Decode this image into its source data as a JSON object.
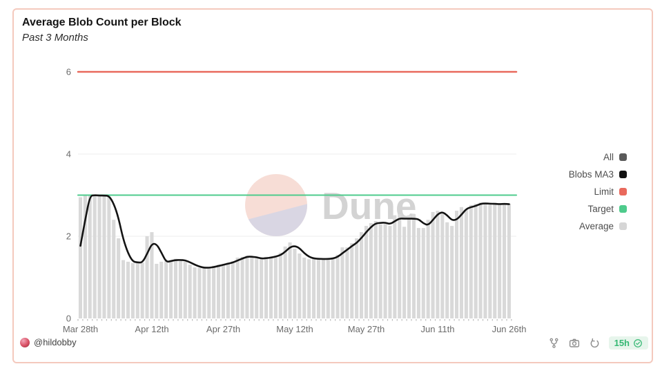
{
  "header": {
    "title": "Average Blob Count per Block",
    "subtitle": "Past 3 Months"
  },
  "watermark": {
    "text": "Dune"
  },
  "legend": [
    {
      "label": "All",
      "color": "#5a5a5a"
    },
    {
      "label": "Blobs MA3",
      "color": "#111111"
    },
    {
      "label": "Limit",
      "color": "#e9695c"
    },
    {
      "label": "Target",
      "color": "#4ecb8c"
    },
    {
      "label": "Average",
      "color": "#d6d6d6"
    }
  ],
  "footer": {
    "author": "@hildobby",
    "icons": [
      "fork-icon",
      "camera-icon",
      "refresh-icon"
    ],
    "updated_badge": {
      "text": "15h",
      "icon": "check-circle-icon",
      "color": "#34b873",
      "bg": "#e7f5ec"
    }
  },
  "chart_data": {
    "type": "bar",
    "title": "Average Blob Count per Block",
    "subtitle": "Past 3 Months",
    "xlabel": "",
    "ylabel": "",
    "ylim": [
      0,
      6
    ],
    "grid": "horizontal-light",
    "legend_position": "right",
    "x_axis": {
      "unit": "day",
      "start_label": "Mar 28th",
      "end_label": "Jun 26th",
      "tick_days": [
        0,
        15,
        30,
        45,
        60,
        75,
        90
      ],
      "tick_labels": [
        "Mar 28th",
        "Apr 12th",
        "Apr 27th",
        "May 12th",
        "May 27th",
        "Jun 11th",
        "Jun 26th"
      ]
    },
    "y_axis": {
      "ticks": [
        0,
        2,
        4,
        6
      ],
      "labels": [
        "0",
        "2",
        "4",
        "6"
      ],
      "gridline_ticks": [
        2,
        4
      ]
    },
    "series": [
      {
        "name": "Average",
        "type": "bar",
        "color": "#d9d9d9",
        "values": [
          2.95,
          3.0,
          3.0,
          3.0,
          2.97,
          3.0,
          2.98,
          2.4,
          1.95,
          1.42,
          1.38,
          1.35,
          1.36,
          1.36,
          2.0,
          2.1,
          1.33,
          1.38,
          1.4,
          1.41,
          1.45,
          1.41,
          1.38,
          1.31,
          1.24,
          1.23,
          1.23,
          1.24,
          1.28,
          1.31,
          1.33,
          1.36,
          1.39,
          1.48,
          1.5,
          1.53,
          1.48,
          1.45,
          1.44,
          1.5,
          1.5,
          1.52,
          1.6,
          1.75,
          1.85,
          1.7,
          1.58,
          1.48,
          1.44,
          1.46,
          1.45,
          1.43,
          1.46,
          1.48,
          1.55,
          1.73,
          1.73,
          1.83,
          1.95,
          2.1,
          2.25,
          2.32,
          2.37,
          2.29,
          2.34,
          2.25,
          2.51,
          2.54,
          2.23,
          2.51,
          2.54,
          2.2,
          2.2,
          2.4,
          2.59,
          2.62,
          2.57,
          2.34,
          2.25,
          2.62,
          2.71,
          2.66,
          2.76,
          2.79,
          2.82,
          2.79,
          2.76,
          2.82,
          2.76,
          2.79,
          2.79
        ]
      },
      {
        "name": "Blobs MA3",
        "type": "line",
        "color": "#141414",
        "ma_window": 3,
        "source": "Average",
        "seed": [
          1.1,
          1.25
        ]
      },
      {
        "name": "Limit",
        "type": "hline",
        "color": "#e9695c",
        "value": 6
      },
      {
        "name": "Target",
        "type": "hline",
        "color": "#4ecb8c",
        "value": 3
      }
    ]
  }
}
